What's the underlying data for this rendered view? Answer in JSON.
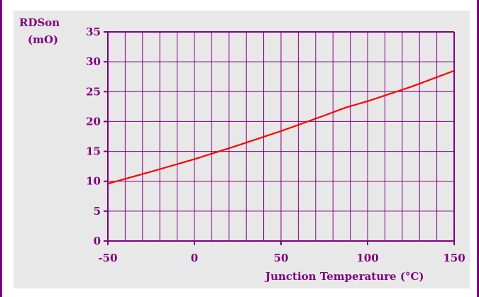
{
  "chart_data": {
    "type": "line",
    "title": "",
    "xlabel": "Junction Temperature (°C)",
    "ylabel_lines": [
      "RDSon",
      "(mO)"
    ],
    "xlim": [
      -50,
      150
    ],
    "ylim": [
      0,
      35
    ],
    "x_ticks": [
      -50,
      0,
      50,
      100,
      150
    ],
    "x_tick_labels": [
      "-50",
      "0",
      "50",
      "100",
      "150"
    ],
    "y_ticks": [
      0,
      5,
      10,
      15,
      20,
      25,
      30,
      35
    ],
    "y_tick_labels": [
      "0",
      "5",
      "10",
      "15",
      "20",
      "25",
      "30",
      "35"
    ],
    "x_grid_step": 10,
    "y_grid_step": 5,
    "grid": true,
    "series": [
      {
        "x": [
          -50,
          -25,
          0,
          25,
          50,
          75,
          87,
          100,
          125,
          150
        ],
        "y": [
          9.6,
          11.6,
          13.7,
          16.0,
          18.4,
          21.0,
          22.3,
          23.4,
          25.8,
          28.5
        ]
      }
    ]
  },
  "colors": {
    "axis": "#800080",
    "grid": "#800080",
    "line": "#ff0000",
    "panel_background": "#e8e8e8"
  }
}
